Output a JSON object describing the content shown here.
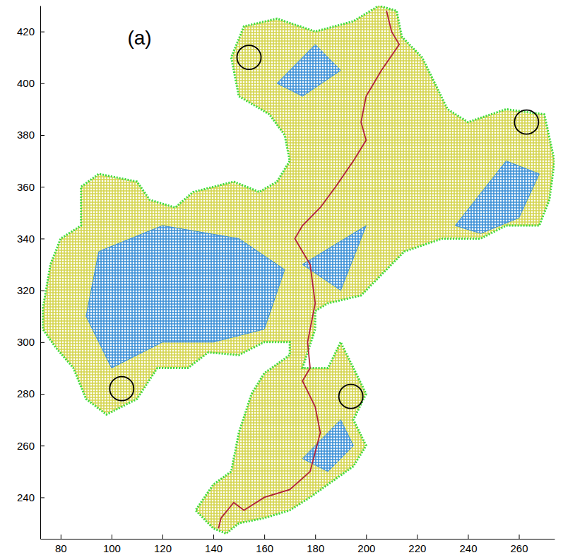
{
  "chart_data": {
    "type": "scatter",
    "xlim": [
      72,
      274
    ],
    "ylim": [
      224,
      430
    ],
    "xticks": [
      80,
      100,
      120,
      140,
      160,
      180,
      200,
      220,
      240,
      260
    ],
    "yticks": [
      240,
      260,
      280,
      300,
      320,
      340,
      360,
      380,
      400,
      420
    ],
    "grid": false,
    "annotations": [
      {
        "text": "(a)",
        "x": 111,
        "y": 417
      }
    ],
    "series": [
      {
        "type": "area",
        "color": "#d4d44c",
        "x": [
          73,
          76,
          80,
          88,
          88,
          95,
          110,
          115,
          125,
          132,
          140,
          148,
          158,
          165,
          170,
          168,
          162,
          150,
          147,
          152,
          165,
          180,
          195,
          205,
          212,
          214,
          222,
          228,
          232,
          240,
          255,
          270,
          274,
          272,
          268,
          255,
          245,
          230,
          215,
          205,
          198,
          185,
          180,
          180,
          175,
          185,
          190,
          195,
          200,
          195,
          200,
          195,
          185,
          178,
          170,
          160,
          150,
          145,
          140,
          133,
          140,
          147,
          150,
          155,
          160,
          170,
          170,
          160,
          150,
          138,
          130,
          118,
          110,
          98,
          90,
          85,
          78,
          73
        ],
        "values": [
          313,
          330,
          340,
          345,
          360,
          365,
          362,
          355,
          352,
          358,
          360,
          362,
          358,
          362,
          370,
          380,
          388,
          395,
          410,
          422,
          425,
          420,
          424,
          430,
          428,
          418,
          410,
          398,
          390,
          385,
          390,
          388,
          370,
          355,
          345,
          345,
          340,
          340,
          335,
          325,
          318,
          315,
          312,
          305,
          290,
          290,
          300,
          290,
          280,
          270,
          260,
          252,
          245,
          240,
          235,
          232,
          230,
          226,
          228,
          235,
          245,
          250,
          265,
          280,
          288,
          295,
          300,
          300,
          295,
          296,
          290,
          290,
          278,
          272,
          278,
          290,
          298,
          305
        ]
      },
      {
        "type": "area",
        "color": "#3a8fd6",
        "x": [
          90,
          95,
          120,
          150,
          168,
          160,
          140,
          120,
          100
        ],
        "values": [
          310,
          335,
          345,
          340,
          328,
          305,
          300,
          300,
          290
        ]
      },
      {
        "type": "area",
        "color": "#3a8fd6",
        "x": [
          175,
          200,
          190
        ],
        "values": [
          330,
          345,
          320
        ]
      },
      {
        "type": "area",
        "color": "#3a8fd6",
        "x": [
          235,
          255,
          268,
          260,
          245
        ],
        "values": [
          345,
          370,
          365,
          348,
          342
        ]
      },
      {
        "type": "area",
        "color": "#3a8fd6",
        "x": [
          165,
          180,
          190,
          175
        ],
        "values": [
          400,
          415,
          405,
          395
        ]
      },
      {
        "type": "area",
        "color": "#3a8fd6",
        "x": [
          175,
          190,
          195,
          185
        ],
        "values": [
          255,
          270,
          260,
          250
        ]
      },
      {
        "type": "line",
        "color": "#b0203a",
        "x": [
          208,
          210,
          213,
          206,
          200,
          198,
          200,
          195,
          188,
          182,
          175,
          172,
          178,
          180,
          177,
          178,
          175,
          180,
          182,
          178,
          170,
          160,
          152,
          148,
          143,
          142
        ],
        "values": [
          428,
          420,
          415,
          405,
          395,
          385,
          378,
          370,
          360,
          352,
          345,
          340,
          330,
          315,
          300,
          290,
          285,
          275,
          265,
          250,
          243,
          240,
          235,
          238,
          232,
          228
        ]
      },
      {
        "type": "scatter",
        "marker": "circle",
        "color": "#000000",
        "x": [
          154,
          263,
          104,
          194
        ],
        "values": [
          410,
          385,
          282,
          279
        ]
      }
    ]
  }
}
